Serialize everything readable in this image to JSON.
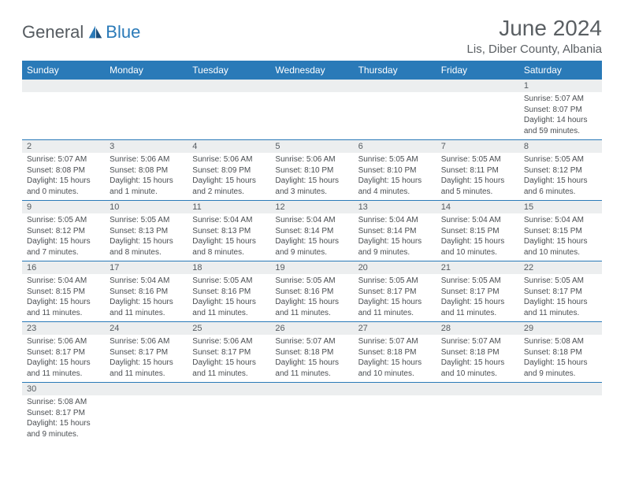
{
  "logo": {
    "text1": "General",
    "text2": "Blue"
  },
  "title": "June 2024",
  "subtitle": "Lis, Diber County, Albania",
  "colors": {
    "header_bg": "#2a7ab8",
    "header_text": "#ffffff",
    "daynum_bg": "#eceeef",
    "rule": "#2a7ab8",
    "text": "#4a4e52",
    "logo_gray": "#555b60",
    "logo_blue": "#2a7ab8"
  },
  "weekdays": [
    "Sunday",
    "Monday",
    "Tuesday",
    "Wednesday",
    "Thursday",
    "Friday",
    "Saturday"
  ],
  "weeks": [
    [
      null,
      null,
      null,
      null,
      null,
      null,
      {
        "n": "1",
        "sr": "5:07 AM",
        "ss": "8:07 PM",
        "dl": "14 hours and 59 minutes."
      }
    ],
    [
      {
        "n": "2",
        "sr": "5:07 AM",
        "ss": "8:08 PM",
        "dl": "15 hours and 0 minutes."
      },
      {
        "n": "3",
        "sr": "5:06 AM",
        "ss": "8:08 PM",
        "dl": "15 hours and 1 minute."
      },
      {
        "n": "4",
        "sr": "5:06 AM",
        "ss": "8:09 PM",
        "dl": "15 hours and 2 minutes."
      },
      {
        "n": "5",
        "sr": "5:06 AM",
        "ss": "8:10 PM",
        "dl": "15 hours and 3 minutes."
      },
      {
        "n": "6",
        "sr": "5:05 AM",
        "ss": "8:10 PM",
        "dl": "15 hours and 4 minutes."
      },
      {
        "n": "7",
        "sr": "5:05 AM",
        "ss": "8:11 PM",
        "dl": "15 hours and 5 minutes."
      },
      {
        "n": "8",
        "sr": "5:05 AM",
        "ss": "8:12 PM",
        "dl": "15 hours and 6 minutes."
      }
    ],
    [
      {
        "n": "9",
        "sr": "5:05 AM",
        "ss": "8:12 PM",
        "dl": "15 hours and 7 minutes."
      },
      {
        "n": "10",
        "sr": "5:05 AM",
        "ss": "8:13 PM",
        "dl": "15 hours and 8 minutes."
      },
      {
        "n": "11",
        "sr": "5:04 AM",
        "ss": "8:13 PM",
        "dl": "15 hours and 8 minutes."
      },
      {
        "n": "12",
        "sr": "5:04 AM",
        "ss": "8:14 PM",
        "dl": "15 hours and 9 minutes."
      },
      {
        "n": "13",
        "sr": "5:04 AM",
        "ss": "8:14 PM",
        "dl": "15 hours and 9 minutes."
      },
      {
        "n": "14",
        "sr": "5:04 AM",
        "ss": "8:15 PM",
        "dl": "15 hours and 10 minutes."
      },
      {
        "n": "15",
        "sr": "5:04 AM",
        "ss": "8:15 PM",
        "dl": "15 hours and 10 minutes."
      }
    ],
    [
      {
        "n": "16",
        "sr": "5:04 AM",
        "ss": "8:15 PM",
        "dl": "15 hours and 11 minutes."
      },
      {
        "n": "17",
        "sr": "5:04 AM",
        "ss": "8:16 PM",
        "dl": "15 hours and 11 minutes."
      },
      {
        "n": "18",
        "sr": "5:05 AM",
        "ss": "8:16 PM",
        "dl": "15 hours and 11 minutes."
      },
      {
        "n": "19",
        "sr": "5:05 AM",
        "ss": "8:16 PM",
        "dl": "15 hours and 11 minutes."
      },
      {
        "n": "20",
        "sr": "5:05 AM",
        "ss": "8:17 PM",
        "dl": "15 hours and 11 minutes."
      },
      {
        "n": "21",
        "sr": "5:05 AM",
        "ss": "8:17 PM",
        "dl": "15 hours and 11 minutes."
      },
      {
        "n": "22",
        "sr": "5:05 AM",
        "ss": "8:17 PM",
        "dl": "15 hours and 11 minutes."
      }
    ],
    [
      {
        "n": "23",
        "sr": "5:06 AM",
        "ss": "8:17 PM",
        "dl": "15 hours and 11 minutes."
      },
      {
        "n": "24",
        "sr": "5:06 AM",
        "ss": "8:17 PM",
        "dl": "15 hours and 11 minutes."
      },
      {
        "n": "25",
        "sr": "5:06 AM",
        "ss": "8:17 PM",
        "dl": "15 hours and 11 minutes."
      },
      {
        "n": "26",
        "sr": "5:07 AM",
        "ss": "8:18 PM",
        "dl": "15 hours and 11 minutes."
      },
      {
        "n": "27",
        "sr": "5:07 AM",
        "ss": "8:18 PM",
        "dl": "15 hours and 10 minutes."
      },
      {
        "n": "28",
        "sr": "5:07 AM",
        "ss": "8:18 PM",
        "dl": "15 hours and 10 minutes."
      },
      {
        "n": "29",
        "sr": "5:08 AM",
        "ss": "8:18 PM",
        "dl": "15 hours and 9 minutes."
      }
    ],
    [
      {
        "n": "30",
        "sr": "5:08 AM",
        "ss": "8:17 PM",
        "dl": "15 hours and 9 minutes."
      },
      null,
      null,
      null,
      null,
      null,
      null
    ]
  ],
  "labels": {
    "sunrise": "Sunrise:",
    "sunset": "Sunset:",
    "daylight": "Daylight:"
  }
}
